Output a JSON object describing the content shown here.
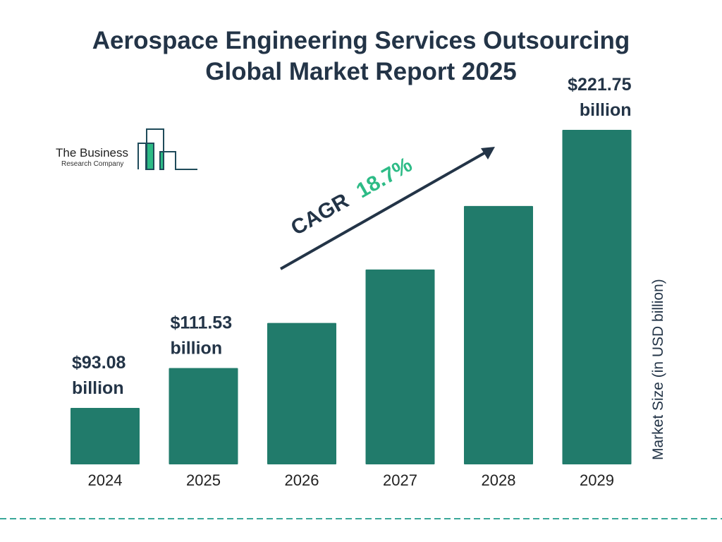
{
  "chart_data": {
    "type": "bar",
    "title": "Aerospace Engineering Services Outsourcing Global Market Report 2025",
    "title_lines": [
      "Aerospace Engineering Services Outsourcing",
      "Global Market Report 2025"
    ],
    "categories": [
      "2024",
      "2025",
      "2026",
      "2027",
      "2028",
      "2029"
    ],
    "values": [
      93.08,
      111.53,
      132.39,
      157.14,
      186.53,
      221.75
    ],
    "data_labels": [
      {
        "index": 0,
        "line1": "$93.08",
        "line2": "billion"
      },
      {
        "index": 1,
        "line1": "$111.53",
        "line2": "billion"
      },
      {
        "index": 5,
        "line1": "$221.75",
        "line2": "billion"
      }
    ],
    "xlabel": "",
    "ylabel": "Market Size (in USD billion)",
    "grid": false,
    "annotation": {
      "prefix": "CAGR",
      "value": "18.7%"
    },
    "colors": {
      "bar": "#217b6b",
      "text": "#233447",
      "cagr": "#2dbb86",
      "dash": "#3aa89a"
    }
  },
  "logo": {
    "line1": "The Business",
    "line2": "Research Company",
    "colors": {
      "outline": "#1f4b5a",
      "fill": "#2dbb86"
    }
  }
}
